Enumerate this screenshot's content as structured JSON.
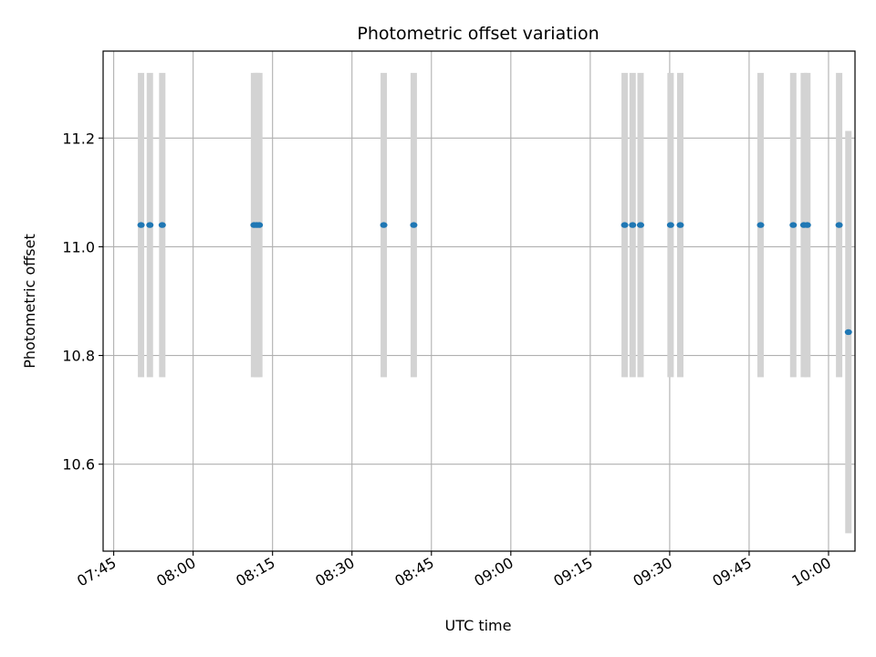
{
  "chart_data": {
    "type": "scatter",
    "title": "Photometric offset variation",
    "xlabel": "UTC time",
    "ylabel": "Photometric offset",
    "x_axis_type": "time",
    "xlim": [
      "07:43",
      "10:05"
    ],
    "ylim": [
      10.44,
      11.36
    ],
    "grid": true,
    "legend": "none",
    "point_color": "#1f77b4",
    "errorbar_color": "#d3d3d3",
    "x_ticks": [
      "07:45",
      "08:00",
      "08:15",
      "08:30",
      "08:45",
      "09:00",
      "09:15",
      "09:30",
      "09:45",
      "10:00"
    ],
    "y_ticks": [
      10.6,
      10.8,
      11.0,
      11.2
    ],
    "y_tick_labels": [
      "10.6",
      "10.8",
      "11.0",
      "11.2"
    ],
    "points": [
      {
        "x": "07:50:10",
        "y": 11.04,
        "err": 0.28
      },
      {
        "x": "07:51:50",
        "y": 11.04,
        "err": 0.28
      },
      {
        "x": "07:54:10",
        "y": 11.04,
        "err": 0.28
      },
      {
        "x": "08:11:30",
        "y": 11.04,
        "err": 0.28
      },
      {
        "x": "08:12:00",
        "y": 11.04,
        "err": 0.28
      },
      {
        "x": "08:12:30",
        "y": 11.04,
        "err": 0.28
      },
      {
        "x": "08:36:00",
        "y": 11.04,
        "err": 0.28
      },
      {
        "x": "08:41:40",
        "y": 11.04,
        "err": 0.28
      },
      {
        "x": "09:21:30",
        "y": 11.04,
        "err": 0.28
      },
      {
        "x": "09:23:00",
        "y": 11.04,
        "err": 0.28
      },
      {
        "x": "09:24:30",
        "y": 11.04,
        "err": 0.28
      },
      {
        "x": "09:30:10",
        "y": 11.04,
        "err": 0.28
      },
      {
        "x": "09:32:00",
        "y": 11.04,
        "err": 0.28
      },
      {
        "x": "09:47:10",
        "y": 11.04,
        "err": 0.28
      },
      {
        "x": "09:53:20",
        "y": 11.04,
        "err": 0.28
      },
      {
        "x": "09:55:20",
        "y": 11.04,
        "err": 0.28
      },
      {
        "x": "09:56:00",
        "y": 11.04,
        "err": 0.28
      },
      {
        "x": "10:02:00",
        "y": 11.04,
        "err": 0.28
      },
      {
        "x": "10:03:45",
        "y": 10.843,
        "err": 0.37
      }
    ]
  }
}
